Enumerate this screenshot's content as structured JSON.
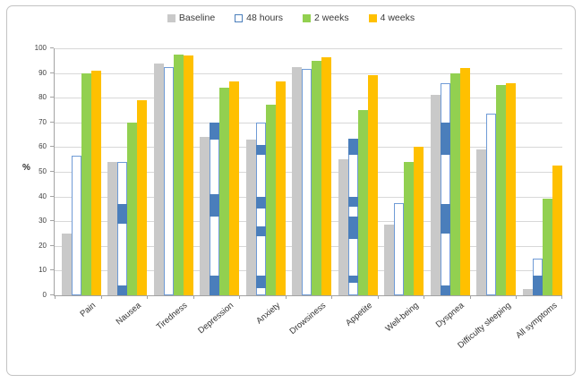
{
  "chart_data": {
    "type": "bar",
    "title": "",
    "ylabel": "%",
    "ylim": [
      0,
      100
    ],
    "yticks": [
      0,
      10,
      20,
      30,
      40,
      50,
      60,
      70,
      80,
      90,
      100
    ],
    "grid": true,
    "legend_position": "top-center",
    "categories": [
      "Pain",
      "Nausea",
      "Tiredness",
      "Depression",
      "Anxiety",
      "Drowsiness",
      "Appetite",
      "Well-being",
      "Dyspnea",
      "Difficulty sleeping",
      "All symptoms"
    ],
    "series": [
      {
        "name": "Baseline",
        "style": "solid",
        "color": "#c9c9c9",
        "values": [
          25,
          54,
          94,
          64,
          63,
          92.5,
          55,
          28.5,
          81,
          59,
          2.5
        ]
      },
      {
        "name": "48 hours",
        "style": "outlined-with-blue-segments",
        "fill": "#ffffff",
        "border_color": "#6f9bd6",
        "segment_color": "#4a7ebb",
        "values": [
          56.5,
          54,
          92.5,
          70,
          70,
          91.5,
          63.5,
          37.5,
          86,
          73.5,
          15
        ],
        "segments": [
          [],
          [
            [
              0,
              4
            ],
            [
              29,
              37
            ]
          ],
          [],
          [
            [
              0,
              8
            ],
            [
              32,
              41
            ],
            [
              63,
              70
            ]
          ],
          [
            [
              3,
              8
            ],
            [
              24,
              28
            ],
            [
              35,
              40
            ],
            [
              57,
              61
            ]
          ],
          [],
          [
            [
              5,
              8
            ],
            [
              23,
              32
            ],
            [
              36,
              40
            ],
            [
              57,
              63.5
            ]
          ],
          [],
          [
            [
              0,
              4
            ],
            [
              25,
              37
            ],
            [
              57,
              70
            ]
          ],
          [],
          [
            [
              0,
              8
            ]
          ]
        ]
      },
      {
        "name": "2 weeks",
        "style": "solid",
        "color": "#92d050",
        "values": [
          90,
          70,
          97.5,
          84,
          77,
          95,
          75,
          54,
          90,
          85,
          39
        ]
      },
      {
        "name": "4 weeks",
        "style": "solid",
        "color": "#ffc000",
        "values": [
          91,
          79,
          97,
          86.5,
          86.5,
          96.5,
          89,
          60,
          92,
          86,
          52.5
        ]
      }
    ]
  },
  "legend": {
    "items": [
      {
        "label": "Baseline"
      },
      {
        "label": "48 hours"
      },
      {
        "label": "2 weeks"
      },
      {
        "label": "4 weeks"
      }
    ]
  },
  "colors": {
    "baseline_gray": "#c9c9c9",
    "blue_outline": "#6f9bd6",
    "blue_solid": "#4a7ebb",
    "green_2weeks": "#92d050",
    "orange_4weeks": "#ffc000",
    "gridline": "#d8d8d8",
    "axis": "#a3a3a3",
    "frame_border": "#c3c3c3",
    "text": "#3a3a3a"
  }
}
